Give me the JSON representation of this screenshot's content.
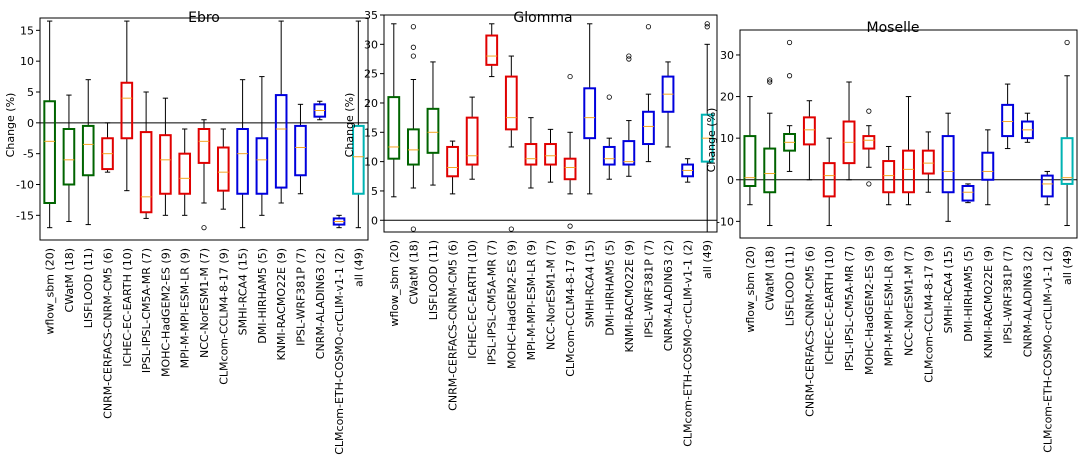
{
  "chart_data": [
    {
      "type": "box",
      "title": "Ebro",
      "ylabel": "Change (%)",
      "ylim": [
        -19,
        17
      ],
      "yticks": [
        -15,
        -10,
        -5,
        0,
        5,
        10,
        15
      ],
      "categories": [
        "wflow_sbm (20)",
        "CWatM (18)",
        "LISFLOOD (11)",
        "CNRM-CERFACS-CNRM-CM5 (6)",
        "ICHEC-EC-EARTH (10)",
        "IPSL-IPSL-CM5A-MR (7)",
        "MOHC-HadGEM2-ES (9)",
        "MPI-M-MPI-ESM-LR (9)",
        "NCC-NorESM1-M (7)",
        "CLMcom-CCLM4-8-17 (9)",
        "SMHI-RCA4 (15)",
        "DMI-HIRHAM5 (5)",
        "KNMI-RACMO22E (9)",
        "IPSL-WRF381P (7)",
        "CNRM-ALADIN63 (2)",
        "CLMcom-ETH-COSMO-crCLIM-v1-1 (2)",
        "all (49)"
      ],
      "colors": [
        "#006400",
        "#006400",
        "#006400",
        "#e00000",
        "#e00000",
        "#e00000",
        "#e00000",
        "#e00000",
        "#e00000",
        "#e00000",
        "#0000dd",
        "#0000dd",
        "#0000dd",
        "#0000dd",
        "#0000dd",
        "#0000dd",
        "#00b3b3"
      ],
      "boxes": [
        {
          "whislo": -17,
          "q1": -13,
          "med": -3,
          "q3": 3.5,
          "whishi": 16.5,
          "fliers": []
        },
        {
          "whislo": -16,
          "q1": -10,
          "med": -6,
          "q3": -1,
          "whishi": 4.5,
          "fliers": []
        },
        {
          "whislo": -16.5,
          "q1": -8.5,
          "med": -3.5,
          "q3": -0.5,
          "whishi": 7,
          "fliers": []
        },
        {
          "whislo": -8,
          "q1": -7.5,
          "med": -5,
          "q3": -2.5,
          "whishi": 0,
          "fliers": []
        },
        {
          "whislo": -11,
          "q1": -2.5,
          "med": 4,
          "q3": 6.5,
          "whishi": 16.5,
          "fliers": []
        },
        {
          "whislo": -15.5,
          "q1": -14.5,
          "med": -12,
          "q3": -1.5,
          "whishi": 5,
          "fliers": []
        },
        {
          "whislo": -15,
          "q1": -11.5,
          "med": -6,
          "q3": -2,
          "whishi": 4,
          "fliers": []
        },
        {
          "whislo": -15,
          "q1": -11.5,
          "med": -9,
          "q3": -5,
          "whishi": -1,
          "fliers": []
        },
        {
          "whislo": -13,
          "q1": -6.5,
          "med": -3,
          "q3": -1,
          "whishi": 0.5,
          "fliers": [
            -17
          ]
        },
        {
          "whislo": -14,
          "q1": -11,
          "med": -8,
          "q3": -4,
          "whishi": -1,
          "fliers": []
        },
        {
          "whislo": -17,
          "q1": -11.5,
          "med": -5,
          "q3": -1,
          "whishi": 7,
          "fliers": []
        },
        {
          "whislo": -15,
          "q1": -11.5,
          "med": -6,
          "q3": -2.5,
          "whishi": 7.5,
          "fliers": []
        },
        {
          "whislo": -13,
          "q1": -10.5,
          "med": -1,
          "q3": 4.5,
          "whishi": 16.5,
          "fliers": []
        },
        {
          "whislo": -11.5,
          "q1": -8.5,
          "med": -4,
          "q3": -0.5,
          "whishi": 3,
          "fliers": []
        },
        {
          "whislo": 0.5,
          "q1": 1,
          "med": 2,
          "q3": 3,
          "whishi": 3.5,
          "fliers": []
        },
        {
          "whislo": -17,
          "q1": -16.5,
          "med": -16,
          "q3": -15.5,
          "whishi": -15,
          "fliers": []
        },
        {
          "whislo": -17,
          "q1": -11.5,
          "med": -5.5,
          "q3": -0.5,
          "whishi": 16.5,
          "fliers": []
        }
      ]
    },
    {
      "type": "box",
      "title": "Glomma",
      "ylabel": "Change (%)",
      "ylim": [
        -2,
        35
      ],
      "yticks": [
        0,
        5,
        10,
        15,
        20,
        25,
        30,
        35
      ],
      "categories": [
        "wflow_sbm (20)",
        "CWatM (18)",
        "LISFLOOD (11)",
        "CNRM-CERFACS-CNRM-CM5 (6)",
        "ICHEC-EC-EARTH (10)",
        "IPSL-IPSL-CM5A-MR (7)",
        "MOHC-HadGEM2-ES (9)",
        "MPI-M-MPI-ESM-LR (9)",
        "NCC-NorESM1-M (7)",
        "CLMcom-CCLM4-8-17 (9)",
        "SMHI-RCA4 (15)",
        "DMI-HIRHAM5 (5)",
        "KNMI-RACMO22E (9)",
        "IPSL-WRF381P (7)",
        "CNRM-ALADIN63 (2)",
        "CLMcom-ETH-COSMO-crCLIM-v1-1 (2)",
        "all (49)"
      ],
      "colors": [
        "#006400",
        "#006400",
        "#006400",
        "#e00000",
        "#e00000",
        "#e00000",
        "#e00000",
        "#e00000",
        "#e00000",
        "#e00000",
        "#0000dd",
        "#0000dd",
        "#0000dd",
        "#0000dd",
        "#0000dd",
        "#0000dd",
        "#00b3b3"
      ],
      "boxes": [
        {
          "whislo": 4,
          "q1": 10.5,
          "med": 12.5,
          "q3": 21,
          "whishi": 33.5,
          "fliers": []
        },
        {
          "whislo": 5.5,
          "q1": 9.5,
          "med": 12,
          "q3": 15.5,
          "whishi": 24,
          "fliers": [
            -1.5,
            28,
            29.5,
            33
          ]
        },
        {
          "whislo": 6,
          "q1": 11.5,
          "med": 15,
          "q3": 19,
          "whishi": 27,
          "fliers": []
        },
        {
          "whislo": 4.5,
          "q1": 7.5,
          "med": 9,
          "q3": 12.5,
          "whishi": 13.5,
          "fliers": []
        },
        {
          "whislo": 7,
          "q1": 9.5,
          "med": 11,
          "q3": 17.5,
          "whishi": 21,
          "fliers": []
        },
        {
          "whislo": 24.5,
          "q1": 26.5,
          "med": 28,
          "q3": 31.5,
          "whishi": 33.5,
          "fliers": []
        },
        {
          "whislo": 12.5,
          "q1": 15.5,
          "med": 17.5,
          "q3": 24.5,
          "whishi": 28,
          "fliers": [
            -1.5
          ]
        },
        {
          "whislo": 5.5,
          "q1": 9.5,
          "med": 10.5,
          "q3": 13,
          "whishi": 17.5,
          "fliers": []
        },
        {
          "whislo": 6.5,
          "q1": 9.5,
          "med": 11,
          "q3": 13,
          "whishi": 15.5,
          "fliers": []
        },
        {
          "whislo": 4.5,
          "q1": 7,
          "med": 9,
          "q3": 10.5,
          "whishi": 15,
          "fliers": [
            -1,
            24.5
          ]
        },
        {
          "whislo": 4.5,
          "q1": 14,
          "med": 17.5,
          "q3": 22.5,
          "whishi": 33.5,
          "fliers": []
        },
        {
          "whislo": 7,
          "q1": 9.5,
          "med": 10.5,
          "q3": 12.5,
          "whishi": 14,
          "fliers": [
            21
          ]
        },
        {
          "whislo": 7.5,
          "q1": 9.5,
          "med": 10,
          "q3": 13.5,
          "whishi": 17,
          "fliers": [
            27.5,
            28
          ]
        },
        {
          "whislo": 10,
          "q1": 13,
          "med": 16,
          "q3": 18.5,
          "whishi": 21.5,
          "fliers": [
            33
          ]
        },
        {
          "whislo": 12.5,
          "q1": 18.5,
          "med": 21.5,
          "q3": 24.5,
          "whishi": 27,
          "fliers": []
        },
        {
          "whislo": 6.5,
          "q1": 7.5,
          "med": 8.5,
          "q3": 9.5,
          "whishi": 10.5,
          "fliers": []
        },
        {
          "whislo": -2,
          "q1": 10,
          "med": 14,
          "q3": 18,
          "whishi": 30,
          "fliers": [
            33,
            33.5
          ]
        }
      ]
    },
    {
      "type": "box",
      "title": "Moselle",
      "ylabel": "Change (%)",
      "ylim": [
        -14,
        36
      ],
      "yticks": [
        -10,
        0,
        10,
        20,
        30
      ],
      "categories": [
        "wflow_sbm (20)",
        "CWatM (18)",
        "LISFLOOD (11)",
        "CNRM-CERFACS-CNRM-CM5 (6)",
        "ICHEC-EC-EARTH (10)",
        "IPSL-IPSL-CM5A-MR (7)",
        "MOHC-HadGEM2-ES (9)",
        "MPI-M-MPI-ESM-LR (9)",
        "NCC-NorESM1-M (7)",
        "CLMcom-CCLM4-8-17 (9)",
        "SMHI-RCA4 (15)",
        "DMI-HIRHAM5 (5)",
        "KNMI-RACMO22E (9)",
        "IPSL-WRF381P (7)",
        "CNRM-ALADIN63 (2)",
        "CLMcom-ETH-COSMO-crCLIM-v1-1 (2)",
        "all (49)"
      ],
      "colors": [
        "#006400",
        "#006400",
        "#006400",
        "#e00000",
        "#e00000",
        "#e00000",
        "#e00000",
        "#e00000",
        "#e00000",
        "#e00000",
        "#0000dd",
        "#0000dd",
        "#0000dd",
        "#0000dd",
        "#0000dd",
        "#0000dd",
        "#00b3b3"
      ],
      "boxes": [
        {
          "whislo": -6,
          "q1": -1.5,
          "med": 0.5,
          "q3": 10.5,
          "whishi": 20,
          "fliers": []
        },
        {
          "whislo": -11,
          "q1": -3,
          "med": 1.5,
          "q3": 7.5,
          "whishi": 16,
          "fliers": [
            23.5,
            24
          ]
        },
        {
          "whislo": 2,
          "q1": 7,
          "med": 9,
          "q3": 11,
          "whishi": 13,
          "fliers": [
            25,
            33
          ]
        },
        {
          "whislo": 0,
          "q1": 8.5,
          "med": 12,
          "q3": 15,
          "whishi": 19,
          "fliers": []
        },
        {
          "whislo": -11,
          "q1": -4,
          "med": 1,
          "q3": 4,
          "whishi": 10,
          "fliers": []
        },
        {
          "whislo": 0,
          "q1": 4,
          "med": 9,
          "q3": 14,
          "whishi": 23.5,
          "fliers": []
        },
        {
          "whislo": 3,
          "q1": 7.5,
          "med": 9.5,
          "q3": 10.5,
          "whishi": 13,
          "fliers": [
            -1,
            16.5
          ]
        },
        {
          "whislo": -6,
          "q1": -3,
          "med": 1,
          "q3": 4.5,
          "whishi": 8,
          "fliers": []
        },
        {
          "whislo": -6,
          "q1": -3,
          "med": 2.5,
          "q3": 7,
          "whishi": 20,
          "fliers": []
        },
        {
          "whislo": -3,
          "q1": 1.5,
          "med": 4,
          "q3": 7,
          "whishi": 11.5,
          "fliers": []
        },
        {
          "whislo": -10,
          "q1": -3,
          "med": 2,
          "q3": 10.5,
          "whishi": 16,
          "fliers": []
        },
        {
          "whislo": -5.5,
          "q1": -5,
          "med": -3,
          "q3": -1.5,
          "whishi": -1,
          "fliers": []
        },
        {
          "whislo": -6,
          "q1": 0,
          "med": 2,
          "q3": 6.5,
          "whishi": 12,
          "fliers": []
        },
        {
          "whislo": 7.5,
          "q1": 10.5,
          "med": 14,
          "q3": 18,
          "whishi": 23,
          "fliers": []
        },
        {
          "whislo": 9,
          "q1": 10,
          "med": 12,
          "q3": 14,
          "whishi": 16,
          "fliers": []
        },
        {
          "whislo": -6,
          "q1": -4,
          "med": -1,
          "q3": 1,
          "whishi": 2,
          "fliers": []
        },
        {
          "whislo": -11,
          "q1": -1,
          "med": 0.5,
          "q3": 10,
          "whishi": 25,
          "fliers": [
            33
          ]
        }
      ]
    }
  ]
}
